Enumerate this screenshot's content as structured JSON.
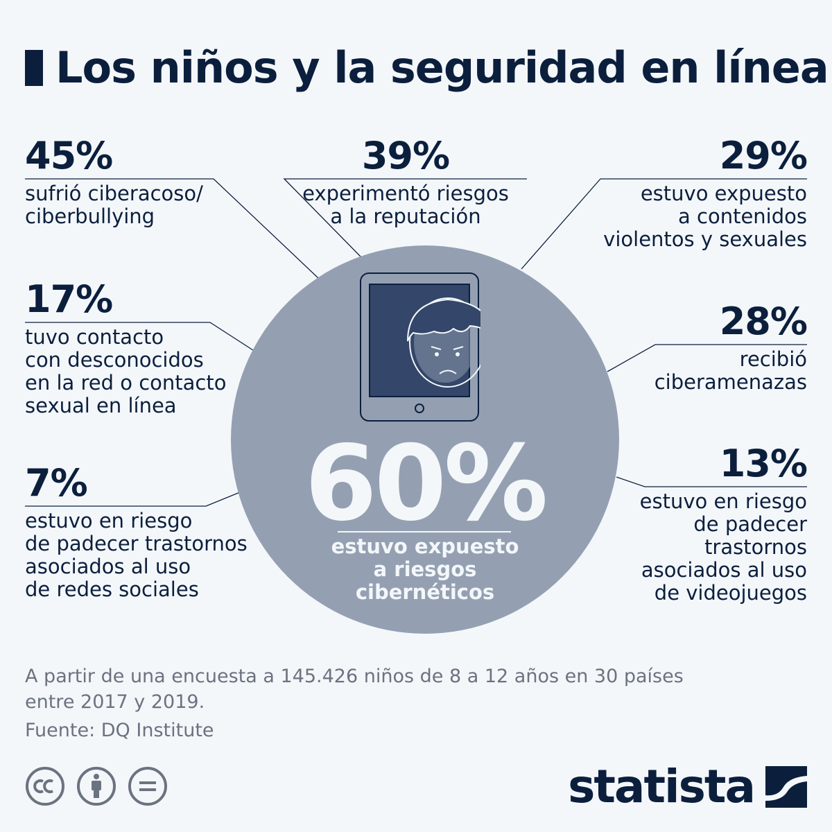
{
  "header": {
    "title": "Los niños y la seguridad en línea"
  },
  "stats": {
    "s45": {
      "pct": "45%",
      "desc": "sufrió ciberacoso/\nciberbullying"
    },
    "s39": {
      "pct": "39%",
      "desc": "experimentó riesgos\na la reputación"
    },
    "s29": {
      "pct": "29%",
      "desc": "estuvo expuesto\na contenidos\nviolentos y sexuales"
    },
    "s17": {
      "pct": "17%",
      "desc": "tuvo contacto\ncon desconocidos\nen la red o contacto\nsexual en línea"
    },
    "s28": {
      "pct": "28%",
      "desc": "recibió\nciberamenazas"
    },
    "s7": {
      "pct": "7%",
      "desc": "estuvo en riesgo\nde padecer trastornos\nasociados al uso\nde redes sociales"
    },
    "s13": {
      "pct": "13%",
      "desc": "estuvo en riesgo\nde padecer\ntrastornos\nasociados al uso\nde videojuegos"
    }
  },
  "center": {
    "pct": "60%",
    "desc": "estuvo expuesto\na riesgos\ncibernéticos"
  },
  "footer": {
    "note": "A partir de una encuesta a 145.426 niños de 8 a 12 años en 30 países\nentre 2017 y 2019.",
    "source": "Fuente: DQ Institute",
    "brand": "statista"
  },
  "colors": {
    "navy": "#0b1f3d",
    "circle": "#94a0b2",
    "background": "#f4f7fa",
    "muted": "#6b7280"
  }
}
